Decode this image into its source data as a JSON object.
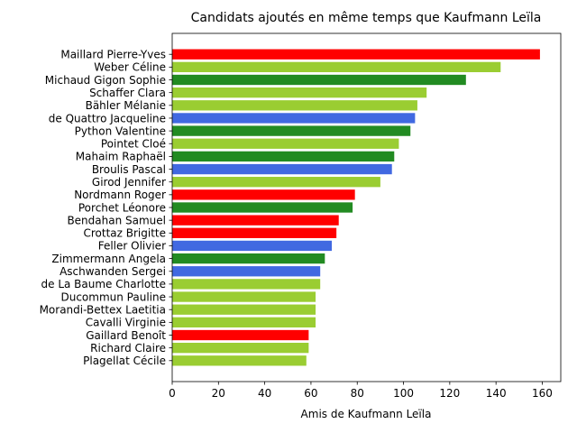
{
  "chart_data": {
    "type": "bar",
    "orientation": "horizontal",
    "title": "Candidats ajoutés en même temps que Kaufmann Leïla",
    "xlabel": "Amis de Kaufmann Leïla",
    "ylabel": "",
    "xlim": [
      0,
      168
    ],
    "xticks": [
      0,
      20,
      40,
      60,
      80,
      100,
      120,
      140,
      160
    ],
    "grid": false,
    "categories": [
      "Maillard Pierre-Yves",
      "Weber Céline",
      "Michaud Gigon Sophie",
      "Schaffer Clara",
      "Bähler Mélanie",
      "de Quattro Jacqueline",
      "Python Valentine",
      "Pointet Cloé",
      "Mahaim Raphaël",
      "Broulis Pascal",
      "Girod Jennifer",
      "Nordmann Roger",
      "Porchet Léonore",
      "Bendahan Samuel",
      "Crottaz Brigitte",
      "Feller Olivier",
      "Zimmermann Angela",
      "Aschwanden Sergei",
      "de La Baume Charlotte",
      "Ducommun Pauline",
      "Morandi-Bettex Laetitia",
      "Cavalli Virginie",
      "Gaillard Benoît",
      "Richard Claire",
      "Plagellat Cécile"
    ],
    "values": [
      159,
      142,
      127,
      110,
      106,
      105,
      103,
      98,
      96,
      95,
      90,
      79,
      78,
      72,
      71,
      69,
      66,
      64,
      64,
      62,
      62,
      62,
      59,
      59,
      58
    ],
    "colors": [
      "#ff0000",
      "#9acd32",
      "#228b22",
      "#9acd32",
      "#9acd32",
      "#4169e1",
      "#228b22",
      "#9acd32",
      "#228b22",
      "#4169e1",
      "#9acd32",
      "#ff0000",
      "#228b22",
      "#ff0000",
      "#ff0000",
      "#4169e1",
      "#228b22",
      "#4169e1",
      "#9acd32",
      "#9acd32",
      "#9acd32",
      "#9acd32",
      "#ff0000",
      "#9acd32",
      "#9acd32"
    ]
  }
}
